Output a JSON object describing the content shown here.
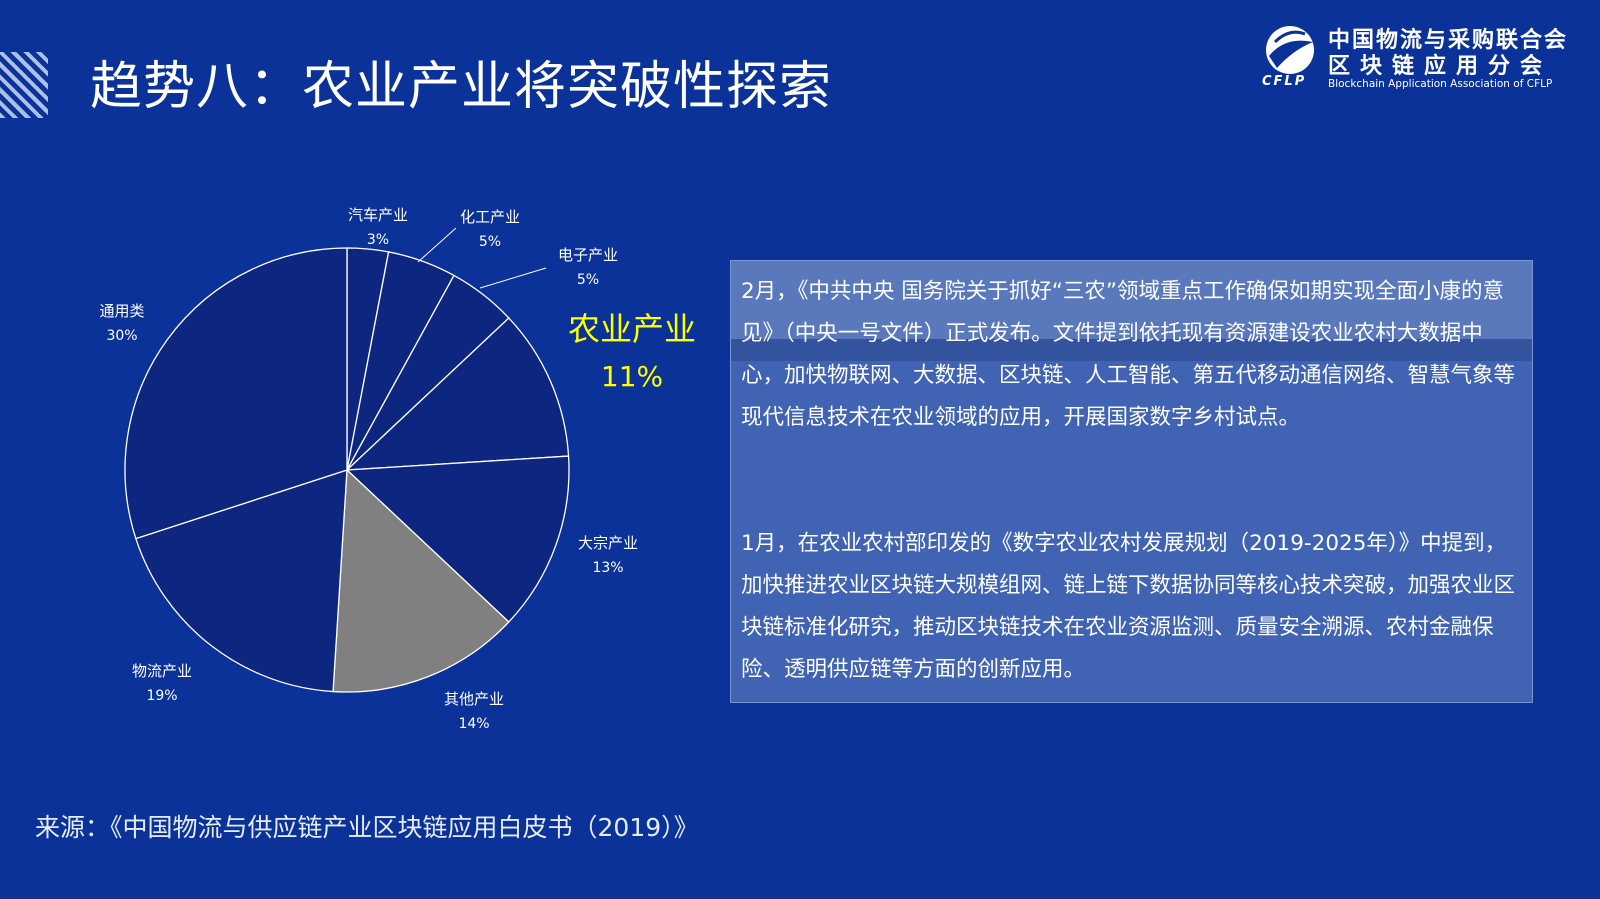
{
  "slide": {
    "title": "趋势八：农业产业将突破性探索",
    "source": "来源：《中国物流与供应链产业区块链应用白皮书（2019）》"
  },
  "logo": {
    "cn_line1": "中国物流与采购联合会",
    "cn_line2": "区块链应用分会",
    "abbr": "CFLP",
    "en": "Blockchain Application Association of CFLP"
  },
  "panel": {
    "p1": "2月，《中共中央 国务院关于抓好“三农”领域重点工作确保如期实现全面小康的意见》（中央一号文件）正式发布。文件提到依托现有资源建设农业农村大数据中心，加快物联网、大数据、区块链、人工智能、第五代移动通信网络、智慧气象等现代信息技术在农业领域的应用，开展国家数字乡村试点。",
    "p2": "1月，在农业农村部印发的《数字农业农村发展规划（2019-2025年）》中提到，加快推进农业区块链大规模组网、链上链下数据协同等核心技术突破，加强农业区块链标准化研究，推动区块链技术在农业资源监测、质量安全溯源、农村金融保险、透明供应链等方面的创新应用。"
  },
  "colors": {
    "background": "#0a3299",
    "slice": "#0d2680",
    "highlight_slice": "#808080",
    "highlight_label": "#ffff00"
  },
  "chart_data": {
    "type": "pie",
    "title": "",
    "slices": [
      {
        "label": "汽车产业",
        "value": 3,
        "pct_label": "3%"
      },
      {
        "label": "化工产业",
        "value": 5,
        "pct_label": "5%"
      },
      {
        "label": "电子产业",
        "value": 5,
        "pct_label": "5%"
      },
      {
        "label": "农业产业",
        "value": 11,
        "pct_label": "11%",
        "highlight": true
      },
      {
        "label": "大宗产业",
        "value": 13,
        "pct_label": "13%"
      },
      {
        "label": "其他产业",
        "value": 14,
        "pct_label": "14%",
        "shaded": true
      },
      {
        "label": "物流产业",
        "value": 19,
        "pct_label": "19%"
      },
      {
        "label": "通用类",
        "value": 30,
        "pct_label": "30%"
      }
    ]
  }
}
